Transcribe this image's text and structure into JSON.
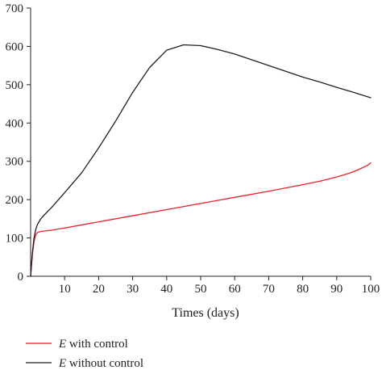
{
  "chart_data": {
    "type": "line",
    "title": "",
    "xlabel": "Times (days)",
    "ylabel": "",
    "xlim": [
      0,
      100
    ],
    "ylim": [
      0,
      700
    ],
    "x_ticks": [
      10,
      20,
      30,
      40,
      50,
      60,
      70,
      80,
      90,
      100
    ],
    "y_ticks": [
      0,
      100,
      200,
      300,
      400,
      500,
      600,
      700
    ],
    "grid": false,
    "legend_position": "bottom-left",
    "series": [
      {
        "name": "E with control",
        "legend_symbol": "E",
        "legend_suffix": " with control",
        "color": "#e8232a",
        "x": [
          0,
          0.5,
          1,
          1.5,
          2,
          3,
          4,
          6,
          8,
          10,
          15,
          20,
          30,
          40,
          50,
          60,
          70,
          80,
          85,
          90,
          93,
          95,
          97,
          99,
          100
        ],
        "y": [
          0,
          55,
          90,
          108,
          114,
          117,
          118,
          120,
          123,
          126,
          134,
          142,
          158,
          174,
          190,
          206,
          222,
          239,
          248,
          259,
          267,
          273,
          281,
          289,
          296
        ]
      },
      {
        "name": "E without control",
        "legend_symbol": "E",
        "legend_suffix": " without control",
        "color": "#231f20",
        "x": [
          0,
          0.5,
          1,
          1.5,
          2,
          3,
          4,
          6,
          8,
          10,
          15,
          20,
          25,
          30,
          35,
          40,
          45,
          50,
          55,
          60,
          65,
          70,
          75,
          80,
          85,
          90,
          95,
          100
        ],
        "y": [
          0,
          60,
          100,
          122,
          135,
          150,
          160,
          178,
          198,
          218,
          270,
          335,
          405,
          480,
          545,
          590,
          604,
          602,
          592,
          580,
          565,
          550,
          535,
          520,
          507,
          493,
          480,
          466
        ]
      }
    ]
  }
}
